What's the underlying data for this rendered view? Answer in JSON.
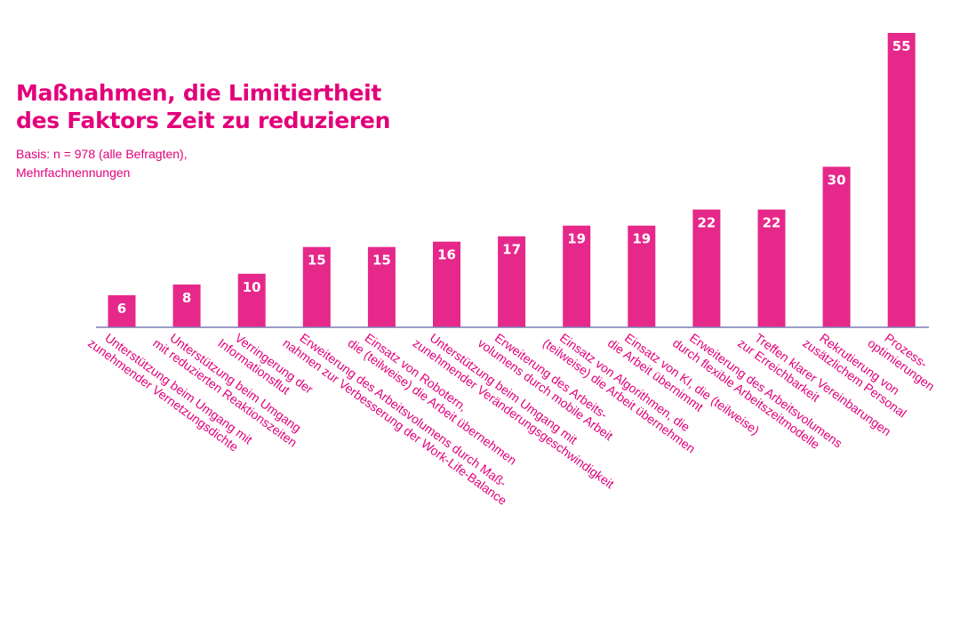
{
  "title_lines": [
    "Maßnahmen, die Limitiertheit",
    "des Faktors Zeit zu reduzieren"
  ],
  "subtitle_lines": [
    "Basis: n = 978 (alle Befragten),",
    "Mehrfachnennungen"
  ],
  "colors": {
    "accent": "#e2007a",
    "bar": "#e6288a",
    "axis": "#7b7fb3",
    "bar_label": "#ffffff"
  },
  "chart_data": {
    "type": "bar",
    "categories": [
      [
        "Unterstützung beim Umgang mit",
        "zunehmender Vernetzungsdichte"
      ],
      [
        "Unterstützung beim Umgang",
        "mit reduzierten Reaktionszeiten"
      ],
      [
        "Verringerung der",
        "Informationsflut"
      ],
      [
        "Erweiterung des Arbeitsvolumens durch Maß-",
        "nahmen zur Verbesserung der Work-Life-Balance"
      ],
      [
        "Einsatz von Robotern,",
        "die (teilweise) die Arbeit übernehmen"
      ],
      [
        "Unterstützung beim Umgang mit",
        "zunehmender Veränderungsgeschwindigkeit"
      ],
      [
        "Erweiterung des Arbeits-",
        "volumens durch mobile Arbeit"
      ],
      [
        "Einsatz von Algorithmen, die",
        "(teilweise) die Arbeit übernehmen"
      ],
      [
        "Einsatz von KI, die (teilweise)",
        "die Arbeit übernimmt"
      ],
      [
        "Erweiterung des Arbeitsvolumens",
        "durch flexible Arbeitszeitmodelle"
      ],
      [
        "Treffen klarer Vereinbarungen",
        "zur Erreichbarkeit"
      ],
      [
        "Rekrutierung von",
        "zusätzlichem Personal"
      ],
      [
        "Prozess-",
        "optimierungen"
      ]
    ],
    "values": [
      6,
      8,
      10,
      15,
      15,
      16,
      17,
      19,
      19,
      22,
      22,
      30,
      55
    ],
    "ylim": [
      0,
      55
    ],
    "grid": false,
    "legend": "none"
  }
}
